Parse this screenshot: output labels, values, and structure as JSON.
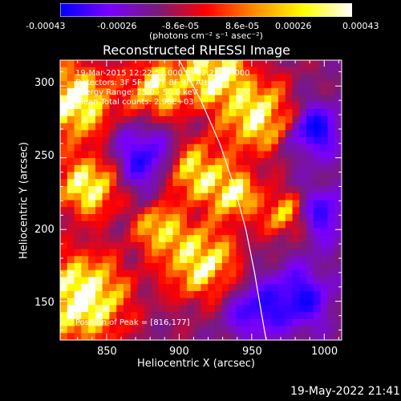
{
  "colorbar": {
    "ticks": [
      "-0.00043",
      "-0.00026",
      "-8.6e-05",
      "8.6e-05",
      "0.00026",
      "0.00043"
    ],
    "units": "(photons cm⁻² s⁻¹ asec⁻²)",
    "colors": [
      "#0000ff",
      "#7a00ff",
      "#7a1a7a",
      "#ff0000",
      "#ff8c00",
      "#ffff00",
      "#ffffff"
    ]
  },
  "chart_data": {
    "type": "heatmap",
    "title": "Reconstructed RHESSI Image",
    "xlabel": "Heliocentric X (arcsec)",
    "ylabel": "Heliocentric Y (arcsec)",
    "xlim": [
      818,
      1012
    ],
    "ylim": [
      123,
      318
    ],
    "xticks": [
      850,
      900,
      950,
      1000
    ],
    "yticks": [
      150,
      200,
      250,
      300
    ],
    "limb_curve": [
      [
        900,
        318
      ],
      [
        915,
        290
      ],
      [
        928,
        260
      ],
      [
        938,
        230
      ],
      [
        946,
        200
      ],
      [
        952,
        170
      ],
      [
        957,
        140
      ],
      [
        960,
        123
      ]
    ],
    "annotations": [
      "19-Mar-2015 12:22:52.000 to 12:25:08.000",
      "Detectors: 3F 5F 6F 7F 8F 9F, Att 0",
      "Energy Range: 25.0 - 50.0 keV",
      "Clean     Total counts: 2.96E+03"
    ],
    "peak_label": "Position of Peak = [816,177]"
  },
  "footer": {
    "timestamp": "19-May-2022 21:41"
  }
}
